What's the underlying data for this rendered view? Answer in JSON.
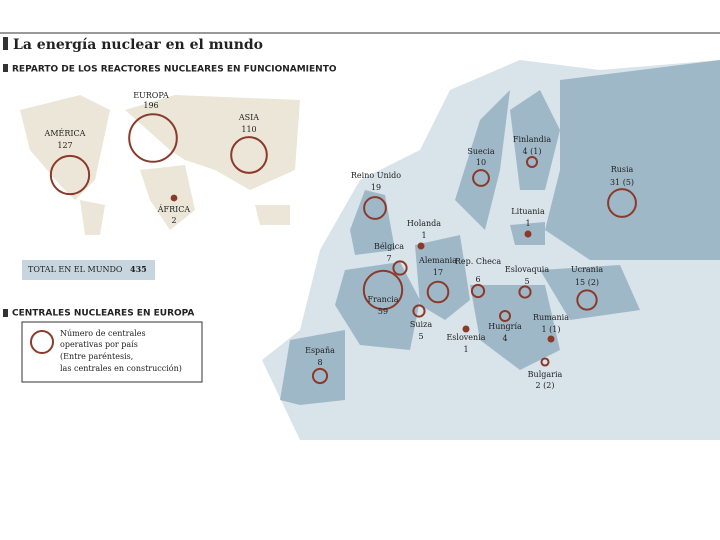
{
  "header": {
    "title": "La energía nuclear en el mundo",
    "subtitle": "REPARTO DE LOS REACTORES NUCLEARES EN FUNCIONAMIENTO"
  },
  "world": {
    "regions": [
      {
        "name": "EUROPA",
        "value": 196
      },
      {
        "name": "AMÉRICA",
        "value": 127
      },
      {
        "name": "ASIA",
        "value": 110
      },
      {
        "name": "ÁFRICA",
        "value": 2
      }
    ],
    "total_label": "TOTAL EN EL MUNDO",
    "total": 435
  },
  "europe": {
    "title": "CENTRALES NUCLEARES EN EUROPA",
    "legend": [
      "Número de centrales",
      "operativas por país",
      "(Entre paréntesis,",
      "las centrales en construcción)"
    ],
    "countries": [
      {
        "name": "Reino Unido",
        "value": 19
      },
      {
        "name": "Holanda",
        "value": 1
      },
      {
        "name": "Bélgica",
        "value": 7
      },
      {
        "name": "Alemania",
        "value": 17
      },
      {
        "name": "Francia",
        "value": 59
      },
      {
        "name": "Suiza",
        "value": 5
      },
      {
        "name": "España",
        "value": 8
      },
      {
        "name": "Suecia",
        "value": 10
      },
      {
        "name": "Finlandia",
        "value": 4,
        "value_label": "4 (1)"
      },
      {
        "name": "Rusia",
        "value": 31,
        "value_label": "31 (5)"
      },
      {
        "name": "Lituania",
        "value": 1
      },
      {
        "name": "Rep. Checa",
        "value": 6
      },
      {
        "name": "Eslovaquia",
        "value": 5
      },
      {
        "name": "Ucrania",
        "value": 15,
        "value_label": "15 (2)"
      },
      {
        "name": "Hungría",
        "value": 4
      },
      {
        "name": "Eslovenia",
        "value": 1
      },
      {
        "name": "Rumania",
        "value": 1,
        "value_label": "1 (1)"
      },
      {
        "name": "Bulgaria",
        "value": 2,
        "value_label": "2 (2)"
      }
    ]
  }
}
